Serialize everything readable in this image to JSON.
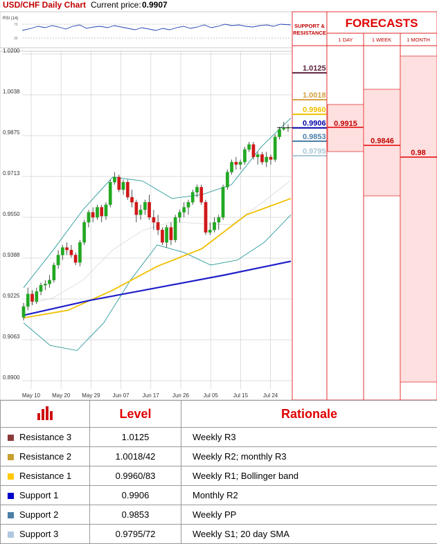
{
  "header": {
    "title": "USD/CHF Daily Chart",
    "price_label": "Current price:",
    "price": "0.9907"
  },
  "rsi": {
    "label": "RSI (14)",
    "upper_label": "70",
    "lower_label": "30"
  },
  "support_resistance_header": [
    "SUPPORT &",
    "RESISTANCE"
  ],
  "forecasts": {
    "title": "FORECASTS",
    "columns": [
      "1 DAY",
      "1 WEEK",
      "1 MONTH"
    ],
    "values": [
      "0.9915",
      "0.9846",
      "0.98"
    ],
    "color": "#e00000"
  },
  "chart_data": {
    "type": "candlestick",
    "y_ticks": [
      "1.0200",
      "1.0038",
      "0.9875",
      "0.9713",
      "0.9550",
      "0.9388",
      "0.9225",
      "0.9063",
      "0.8900"
    ],
    "x_ticks": [
      "May 10",
      "May 20",
      "May 29",
      "Jun 07",
      "Jun 17",
      "Jun 26",
      "Jul 05",
      "Jul 15",
      "Jul 24"
    ],
    "ylim": [
      0.89,
      1.02
    ],
    "levels": [
      {
        "label": "1.0125",
        "value": 1.0125,
        "color": "#5a1e3a"
      },
      {
        "label": "1.0018",
        "value": 1.0018,
        "color": "#d4a040"
      },
      {
        "label": "0.9960",
        "value": 0.996,
        "color": "#f0c000"
      },
      {
        "label": "0.9906",
        "value": 0.9906,
        "color": "#0000aa"
      },
      {
        "label": "0.9853",
        "value": 0.9853,
        "color": "#4a7fa8"
      },
      {
        "label": "0.9795",
        "value": 0.9795,
        "color": "#a8c8d8"
      }
    ],
    "candles": [
      [
        0.9152,
        0.921,
        0.914,
        0.9195
      ],
      [
        0.9195,
        0.927,
        0.918,
        0.9245
      ],
      [
        0.9245,
        0.926,
        0.92,
        0.9215
      ],
      [
        0.9215,
        0.927,
        0.9205,
        0.9255
      ],
      [
        0.9255,
        0.929,
        0.924,
        0.928
      ],
      [
        0.928,
        0.93,
        0.926,
        0.9285
      ],
      [
        0.9285,
        0.932,
        0.927,
        0.93
      ],
      [
        0.93,
        0.937,
        0.929,
        0.936
      ],
      [
        0.936,
        0.942,
        0.9345,
        0.94
      ],
      [
        0.94,
        0.944,
        0.938,
        0.943
      ],
      [
        0.943,
        0.945,
        0.94,
        0.942
      ],
      [
        0.942,
        0.944,
        0.939,
        0.94
      ],
      [
        0.94,
        0.941,
        0.936,
        0.937
      ],
      [
        0.937,
        0.946,
        0.9355,
        0.945
      ],
      [
        0.945,
        0.954,
        0.944,
        0.953
      ],
      [
        0.953,
        0.958,
        0.951,
        0.957
      ],
      [
        0.957,
        0.959,
        0.953,
        0.955
      ],
      [
        0.955,
        0.96,
        0.954,
        0.959
      ],
      [
        0.959,
        0.96,
        0.953,
        0.9555
      ],
      [
        0.9555,
        0.961,
        0.954,
        0.96
      ],
      [
        0.96,
        0.97,
        0.959,
        0.969
      ],
      [
        0.969,
        0.973,
        0.968,
        0.971
      ],
      [
        0.971,
        0.972,
        0.965,
        0.966
      ],
      [
        0.966,
        0.97,
        0.964,
        0.969
      ],
      [
        0.969,
        0.97,
        0.962,
        0.963
      ],
      [
        0.963,
        0.966,
        0.959,
        0.961
      ],
      [
        0.961,
        0.962,
        0.953,
        0.956
      ],
      [
        0.956,
        0.96,
        0.954,
        0.958
      ],
      [
        0.958,
        0.962,
        0.956,
        0.961
      ],
      [
        0.961,
        0.964,
        0.954,
        0.955
      ],
      [
        0.955,
        0.958,
        0.95,
        0.953
      ],
      [
        0.953,
        0.956,
        0.948,
        0.95
      ],
      [
        0.95,
        0.951,
        0.944,
        0.945
      ],
      [
        0.945,
        0.952,
        0.943,
        0.951
      ],
      [
        0.951,
        0.953,
        0.944,
        0.946
      ],
      [
        0.946,
        0.956,
        0.945,
        0.955
      ],
      [
        0.955,
        0.958,
        0.953,
        0.957
      ],
      [
        0.957,
        0.961,
        0.955,
        0.959
      ],
      [
        0.959,
        0.962,
        0.956,
        0.961
      ],
      [
        0.961,
        0.966,
        0.96,
        0.965
      ],
      [
        0.965,
        0.968,
        0.963,
        0.967
      ],
      [
        0.967,
        0.968,
        0.96,
        0.961
      ],
      [
        0.961,
        0.962,
        0.948,
        0.949
      ],
      [
        0.949,
        0.953,
        0.948,
        0.95
      ],
      [
        0.95,
        0.955,
        0.949,
        0.953
      ],
      [
        0.953,
        0.956,
        0.95,
        0.955
      ],
      [
        0.955,
        0.968,
        0.954,
        0.967
      ],
      [
        0.967,
        0.974,
        0.966,
        0.973
      ],
      [
        0.973,
        0.978,
        0.972,
        0.977
      ],
      [
        0.977,
        0.979,
        0.974,
        0.976
      ],
      [
        0.976,
        0.978,
        0.974,
        0.977
      ],
      [
        0.977,
        0.983,
        0.976,
        0.982
      ],
      [
        0.982,
        0.985,
        0.981,
        0.984
      ],
      [
        0.984,
        0.985,
        0.978,
        0.979
      ],
      [
        0.979,
        0.981,
        0.976,
        0.98
      ],
      [
        0.98,
        0.981,
        0.976,
        0.977
      ],
      [
        0.977,
        0.981,
        0.975,
        0.979
      ],
      [
        0.979,
        0.98,
        0.976,
        0.978
      ],
      [
        0.978,
        0.988,
        0.977,
        0.987
      ],
      [
        0.987,
        0.991,
        0.986,
        0.99
      ],
      [
        0.99,
        0.993,
        0.9895,
        0.9905
      ],
      [
        0.9905,
        0.992,
        0.989,
        0.9907
      ]
    ],
    "sma_long": [
      0.916,
      0.922,
      0.927,
      0.932,
      0.9375
    ],
    "sma_mid": [
      0.915,
      0.918,
      0.926,
      0.9355,
      0.9425,
      0.956,
      0.9625
    ],
    "boll_upper": [
      0.927,
      0.942,
      0.958,
      0.971,
      0.9695,
      0.9625,
      0.964,
      0.968,
      0.983,
      0.9945
    ],
    "boll_lower": [
      0.913,
      0.904,
      0.902,
      0.913,
      0.93,
      0.944,
      0.941,
      0.936,
      0.938,
      0.945,
      0.956
    ]
  },
  "table": {
    "headers": [
      "",
      "Level",
      "Rationale"
    ],
    "rows": [
      {
        "name": "Resistance 3",
        "level": "1.0125",
        "rationale": "Weekly R3",
        "color": "#8b3a3a"
      },
      {
        "name": "Resistance 2",
        "level": "1.0018/42",
        "rationale": "Weekly R2; monthly R3",
        "color": "#c8a030"
      },
      {
        "name": "Resistance 1",
        "level": "0.9960/83",
        "rationale": "Weekly R1; Bollinger band",
        "color": "#ffc800"
      },
      {
        "name": "Support 1",
        "level": "0.9906",
        "rationale": "Monthly R2",
        "color": "#0000cc"
      },
      {
        "name": "Support 2",
        "level": "0.9853",
        "rationale": "Weekly PP",
        "color": "#4a7fa8"
      },
      {
        "name": "Support 3",
        "level": "0.9795/72",
        "rationale": "Weekly S1; 20 day SMA",
        "color": "#b0c8e0"
      }
    ]
  }
}
